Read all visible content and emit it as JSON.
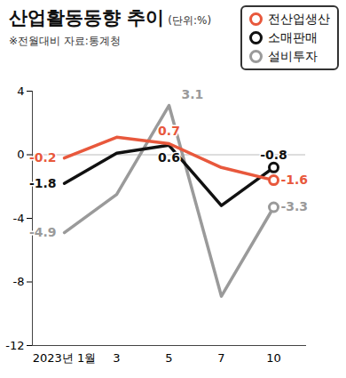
{
  "chart_data": {
    "type": "line",
    "title": "산업활동동향 추이",
    "subtitle": "(단위:%)",
    "note": "※전월대비 자료:통계청",
    "categories": [
      "2023년 1월",
      "3",
      "5",
      "7",
      "10"
    ],
    "series": [
      {
        "name": "전산업생산",
        "color": "#e8583c",
        "values": [
          -0.2,
          1.1,
          0.7,
          -0.8,
          -1.6
        ],
        "value_labels": [
          "-0.2",
          null,
          "0.7",
          null,
          "-1.6"
        ]
      },
      {
        "name": "소매판매",
        "color": "#111111",
        "values": [
          -1.8,
          0.1,
          0.6,
          -3.2,
          -0.8
        ],
        "value_labels": [
          "-1.8",
          null,
          "0.6",
          null,
          "-0.8"
        ]
      },
      {
        "name": "설비투자",
        "color": "#9a9a9a",
        "values": [
          -4.9,
          -2.5,
          3.1,
          -8.9,
          -3.3
        ],
        "value_labels": [
          "-4.9",
          null,
          "3.1",
          null,
          "-3.3"
        ]
      }
    ],
    "ylim": [
      -12,
      4
    ],
    "yticks": [
      4,
      0,
      -4,
      -8,
      -12
    ],
    "grid": false,
    "legend": "top-right"
  }
}
